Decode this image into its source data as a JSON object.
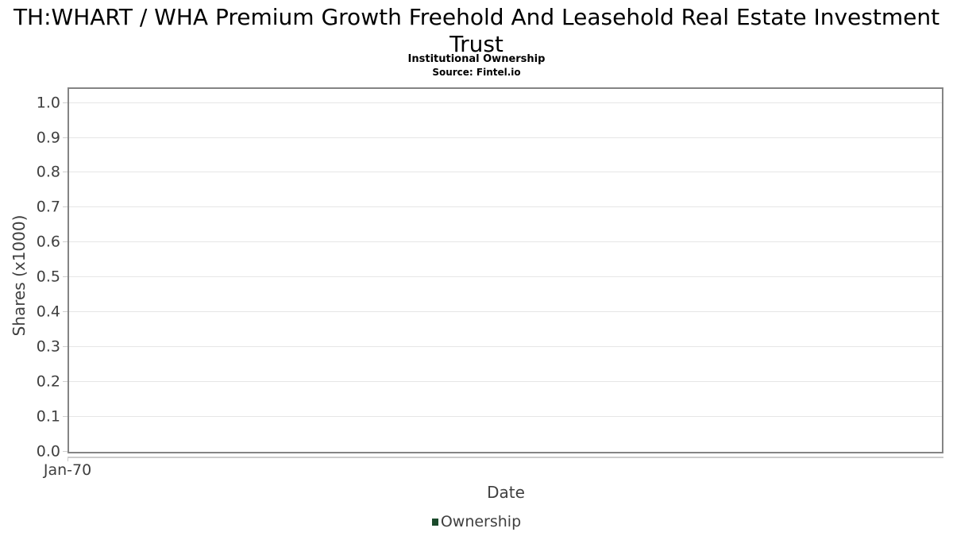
{
  "header": {
    "title": "TH:WHART / WHA Premium Growth Freehold And Leasehold Real Estate Investment Trust",
    "subtitle": "Institutional Ownership",
    "source": "Source: Fintel.io"
  },
  "chart_data": {
    "type": "line",
    "title": "TH:WHART / WHA Premium Growth Freehold And Leasehold Real Estate Investment Trust",
    "subtitle": "Institutional Ownership",
    "source": "Source: Fintel.io",
    "xlabel": "Date",
    "ylabel": "Shares (x1000)",
    "x_tick_labels": [
      "Jan-70"
    ],
    "y_ticks": [
      0.0,
      0.1,
      0.2,
      0.3,
      0.4,
      0.5,
      0.6,
      0.7,
      0.8,
      0.9,
      1.0
    ],
    "ylim": [
      0.0,
      1.04
    ],
    "grid": true,
    "legend_position": "bottom",
    "series": [
      {
        "name": "Ownership",
        "color": "#1b4a2b",
        "x": [],
        "values": []
      }
    ]
  },
  "legend": {
    "items": [
      {
        "label": "Ownership",
        "color": "#1b4a2b"
      }
    ]
  },
  "colors": {
    "background": "#ffffff",
    "plot_border": "#848484",
    "gridline": "#e6e6e6",
    "axis_line": "#cccccc",
    "tick_text": "#3f3f3f",
    "title_text": "#000000"
  }
}
